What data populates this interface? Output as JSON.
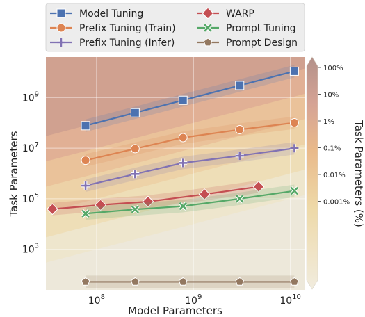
{
  "chart_data": {
    "type": "line",
    "xlabel": "Model Parameters",
    "ylabel": "Task Parameters",
    "colorbar_label": "Task Parameters (%)",
    "x_scale": "log",
    "y_scale": "log",
    "x_ticks": [
      {
        "value": 100000000,
        "base": "10",
        "exp": "8"
      },
      {
        "value": 1000000000,
        "base": "10",
        "exp": "9"
      },
      {
        "value": 10000000000,
        "base": "10",
        "exp": "10"
      }
    ],
    "y_ticks": [
      {
        "value": 1000,
        "base": "10",
        "exp": "3"
      },
      {
        "value": 100000,
        "base": "10",
        "exp": "5"
      },
      {
        "value": 10000000,
        "base": "10",
        "exp": "7"
      },
      {
        "value": 1000000000,
        "base": "10",
        "exp": "9"
      }
    ],
    "colorbar_ticks": [
      "100%",
      "10%",
      "1%",
      "0.1%",
      "0.01%",
      "0.001%"
    ],
    "colorbar_ticks_value": [
      100,
      10,
      1,
      0.1,
      0.01,
      0.001
    ],
    "xlim": [
      30000000,
      14000000000
    ],
    "ylim": [
      25,
      40000000000
    ],
    "grid": true,
    "legend_position": "top",
    "series": [
      {
        "name": "Model Tuning",
        "color": "#4c72b0",
        "marker": "square",
        "x": [
          77000000,
          250000000,
          780000000,
          3000000000,
          11000000000
        ],
        "y": [
          77000000,
          250000000,
          780000000,
          3000000000,
          11000000000
        ]
      },
      {
        "name": "Prefix Tuning (Train)",
        "color": "#dd8452",
        "marker": "circle",
        "x": [
          77000000,
          250000000,
          780000000,
          3000000000,
          11000000000
        ],
        "y": [
          3300000,
          9500000,
          26000000,
          54000000,
          101000000
        ]
      },
      {
        "name": "Prefix Tuning (Infer)",
        "color": "#8172b3",
        "marker": "plus",
        "x": [
          77000000,
          250000000,
          780000000,
          3000000000,
          11000000000
        ],
        "y": [
          330000,
          950000,
          2600000,
          5000000,
          9900000
        ]
      },
      {
        "name": "WARP",
        "color": "#c44e52",
        "marker": "diamond",
        "x": [
          35000000,
          110000000,
          340000000,
          1300000000,
          4700000000
        ],
        "y": [
          39000,
          57000,
          77000,
          150000,
          300000
        ]
      },
      {
        "name": "Prompt Tuning",
        "color": "#55a868",
        "marker": "x",
        "x": [
          77000000,
          250000000,
          780000000,
          3000000000,
          11000000000
        ],
        "y": [
          26000,
          38000,
          51000,
          100000,
          205000
        ]
      },
      {
        "name": "Prompt Design",
        "color": "#937860",
        "marker": "pentagon",
        "x": [
          77000000,
          250000000,
          780000000,
          3000000000,
          11000000000
        ],
        "y": [
          52,
          52,
          52,
          52,
          52
        ]
      }
    ]
  }
}
